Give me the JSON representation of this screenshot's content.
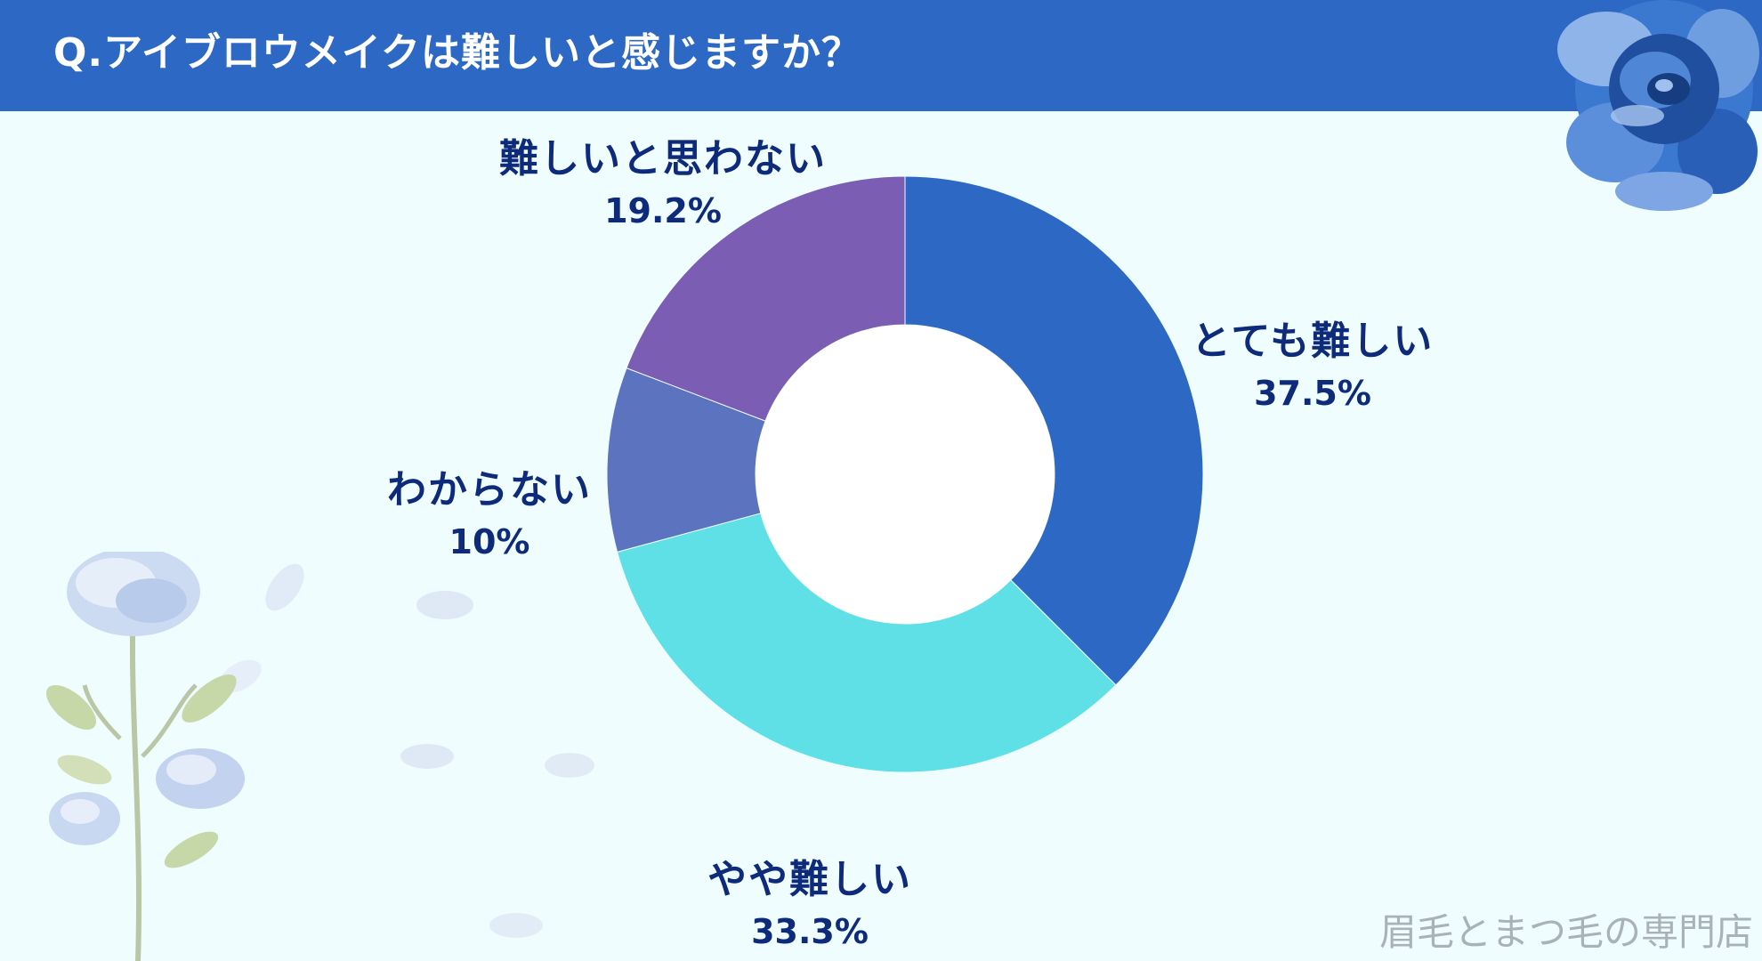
{
  "header": {
    "title": "Q.アイブロウメイクは難しいと感じますか？",
    "background_color": "#2d68c4"
  },
  "chart_data": {
    "type": "pie",
    "donut": true,
    "title": "Q.アイブロウメイクは難しいと感じますか？",
    "categories": [
      "とても難しい",
      "やや難しい",
      "わからない",
      "難しいと思わない"
    ],
    "values": [
      37.5,
      33.3,
      10,
      19.2
    ],
    "value_labels": [
      "37.5%",
      "33.3%",
      "10%",
      "19.2%"
    ],
    "colors": [
      "#2d68c4",
      "#5fe0e6",
      "#5c74c0",
      "#7c5db4"
    ],
    "legend": "none",
    "label_color": "#0e2a7a"
  },
  "watermark": "眉毛とまつ毛の専門店",
  "decorations": {
    "top_right": "blue-rose-icon",
    "bottom_left": "blue-flower-icon"
  }
}
